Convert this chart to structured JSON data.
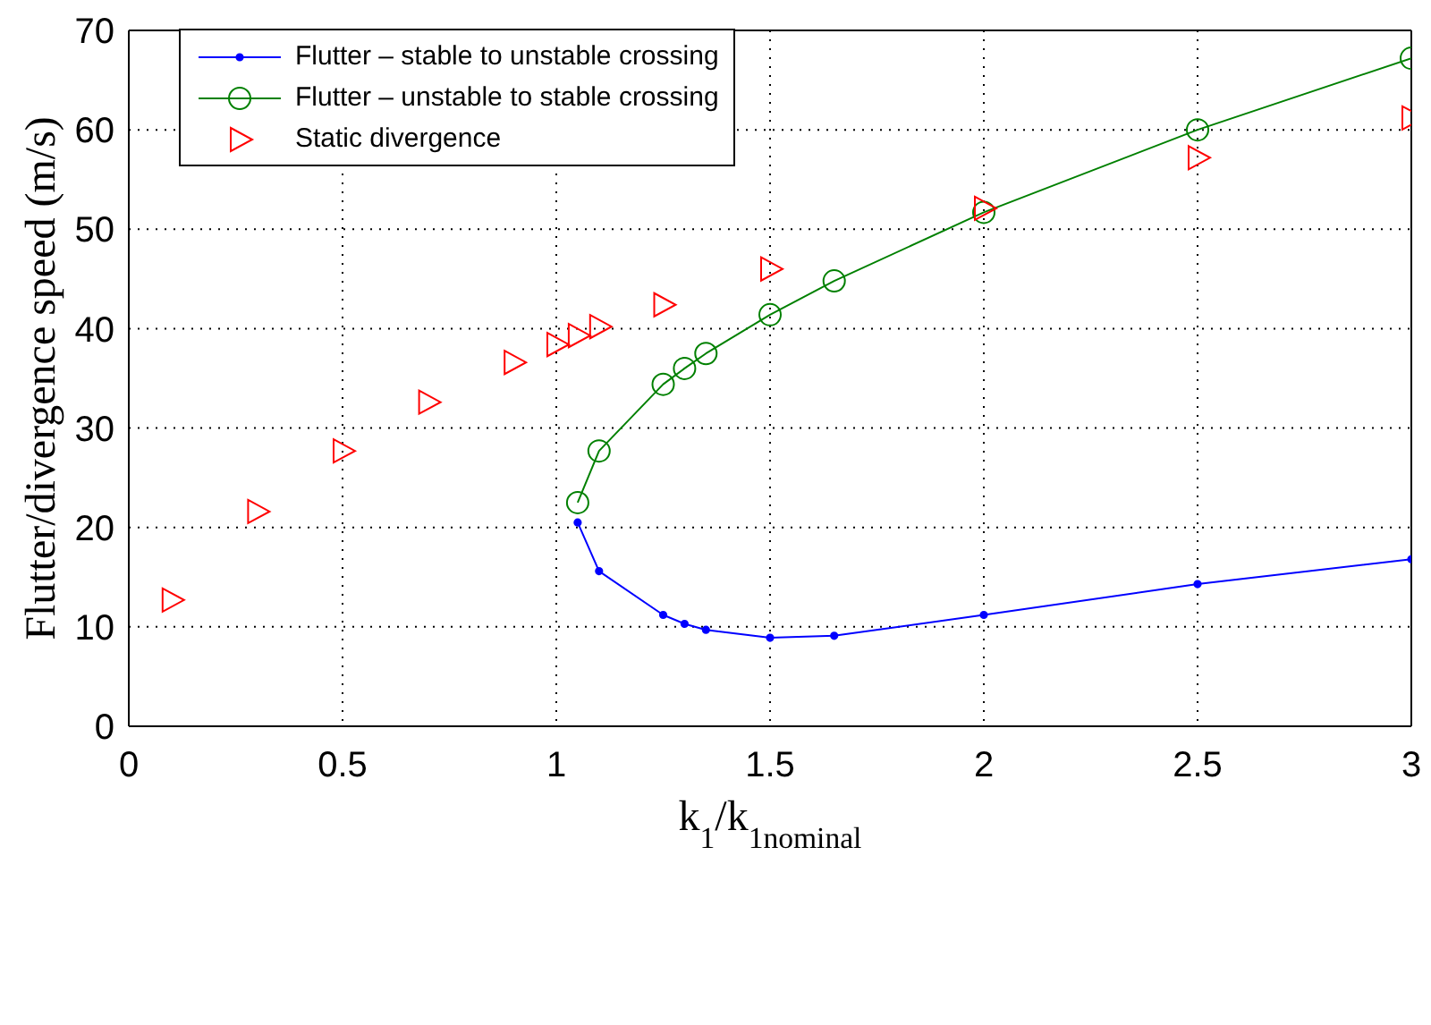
{
  "chart_data": {
    "type": "line",
    "xlabel": "k$_{1}$/k$_{1nominal}$",
    "ylabel": "Flutter/divergence speed (m/s)",
    "xlim": [
      0,
      3
    ],
    "xticks": [
      0,
      0.5,
      1,
      1.5,
      2,
      2.5,
      3
    ],
    "ylim": [
      0,
      70
    ],
    "yticks": [
      0,
      10,
      20,
      30,
      40,
      50,
      60,
      70
    ],
    "grid": true,
    "legend": "top left",
    "series": [
      {
        "name": "Flutter – stable to unstable crossing",
        "color": "#0000ff",
        "marker": "circle",
        "line_style": "solid",
        "x": [
          1.05,
          1.1,
          1.25,
          1.3,
          1.35,
          1.5,
          1.65,
          2.0,
          2.5,
          3.0
        ],
        "values": [
          20.5,
          15.6,
          11.2,
          10.3,
          9.7,
          8.9,
          9.1,
          11.2,
          14.3,
          16.8
        ]
      },
      {
        "name": "Flutter – unstable to stable crossing",
        "color": "#008000",
        "marker": "circle",
        "line_style": "solid",
        "x": [
          1.05,
          1.1,
          1.25,
          1.3,
          1.35,
          1.5,
          1.65,
          2.0,
          2.5,
          3.0
        ],
        "values": [
          22.5,
          27.7,
          34.4,
          36.0,
          37.5,
          41.4,
          44.8,
          51.7,
          60.0,
          67.2
        ]
      },
      {
        "name": "Static divergence",
        "type": "scatter",
        "color": "#ff0000",
        "marker": "triangle",
        "x": [
          0.1,
          0.3,
          0.5,
          0.7,
          0.9,
          1.0,
          1.05,
          1.1,
          1.25,
          1.5,
          2.0,
          2.5,
          3.0
        ],
        "values": [
          12.7,
          21.6,
          27.7,
          32.6,
          36.6,
          38.4,
          39.3,
          40.2,
          42.4,
          46.0,
          52.1,
          57.2,
          61.2
        ]
      }
    ]
  }
}
